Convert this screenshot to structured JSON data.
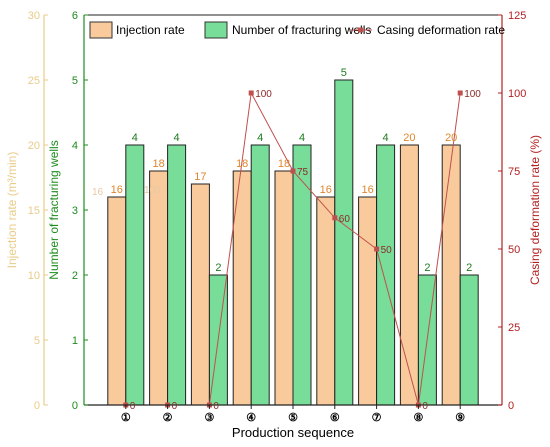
{
  "chart_data": {
    "type": "bar",
    "xlabel": "Production sequence",
    "categories": [
      "①",
      "②",
      "③",
      "④",
      "⑤",
      "⑥",
      "⑦",
      "⑧",
      "⑨"
    ],
    "axes": {
      "left_outer": {
        "label": "Injection rate (m³/min)",
        "range": [
          0,
          30
        ],
        "ticks": [
          "0",
          "5",
          "10",
          "15",
          "20",
          "25",
          "30"
        ],
        "color": "#e8cc88"
      },
      "left_inner": {
        "label": "Number of fracturing wells",
        "range": [
          0,
          6
        ],
        "ticks": [
          "0",
          "1",
          "2",
          "3",
          "4",
          "5",
          "6"
        ],
        "color": "#1e8c1e"
      },
      "right": {
        "label": "Casing deformation rate (%)",
        "range": [
          0,
          125
        ],
        "ticks": [
          "0",
          "25",
          "50",
          "75",
          "100",
          "125"
        ],
        "color": "#b22222"
      }
    },
    "series": [
      {
        "name": "Injection rate",
        "kind": "bar",
        "axis": "left_outer",
        "color": "#f9cb9c",
        "values": [
          16,
          18,
          17,
          18,
          18,
          16,
          16,
          20,
          20
        ],
        "labels": [
          "16",
          "18",
          "17",
          "18",
          "18",
          "16",
          "16",
          "20",
          "20"
        ]
      },
      {
        "name": "Number of fracturing wells",
        "kind": "bar",
        "axis": "left_inner",
        "color": "#77dd99",
        "values": [
          4,
          4,
          2,
          4,
          4,
          5,
          4,
          2,
          2
        ],
        "labels": [
          "4",
          "4",
          "2",
          "4",
          "4",
          "5",
          "4",
          "2",
          "2"
        ]
      },
      {
        "name": "Casing deformation rate",
        "kind": "line",
        "axis": "right",
        "color": "#c0504d",
        "values": [
          0,
          0,
          0,
          100,
          75,
          60,
          50,
          0,
          100
        ],
        "labels": [
          "0",
          "0",
          "0",
          "100",
          "75",
          "60",
          "50",
          "0",
          "100"
        ]
      }
    ],
    "annotations": [
      "100",
      "16"
    ],
    "legend": [
      "Injection rate",
      "Number of fracturing wells",
      "Casing deformation rate"
    ]
  }
}
